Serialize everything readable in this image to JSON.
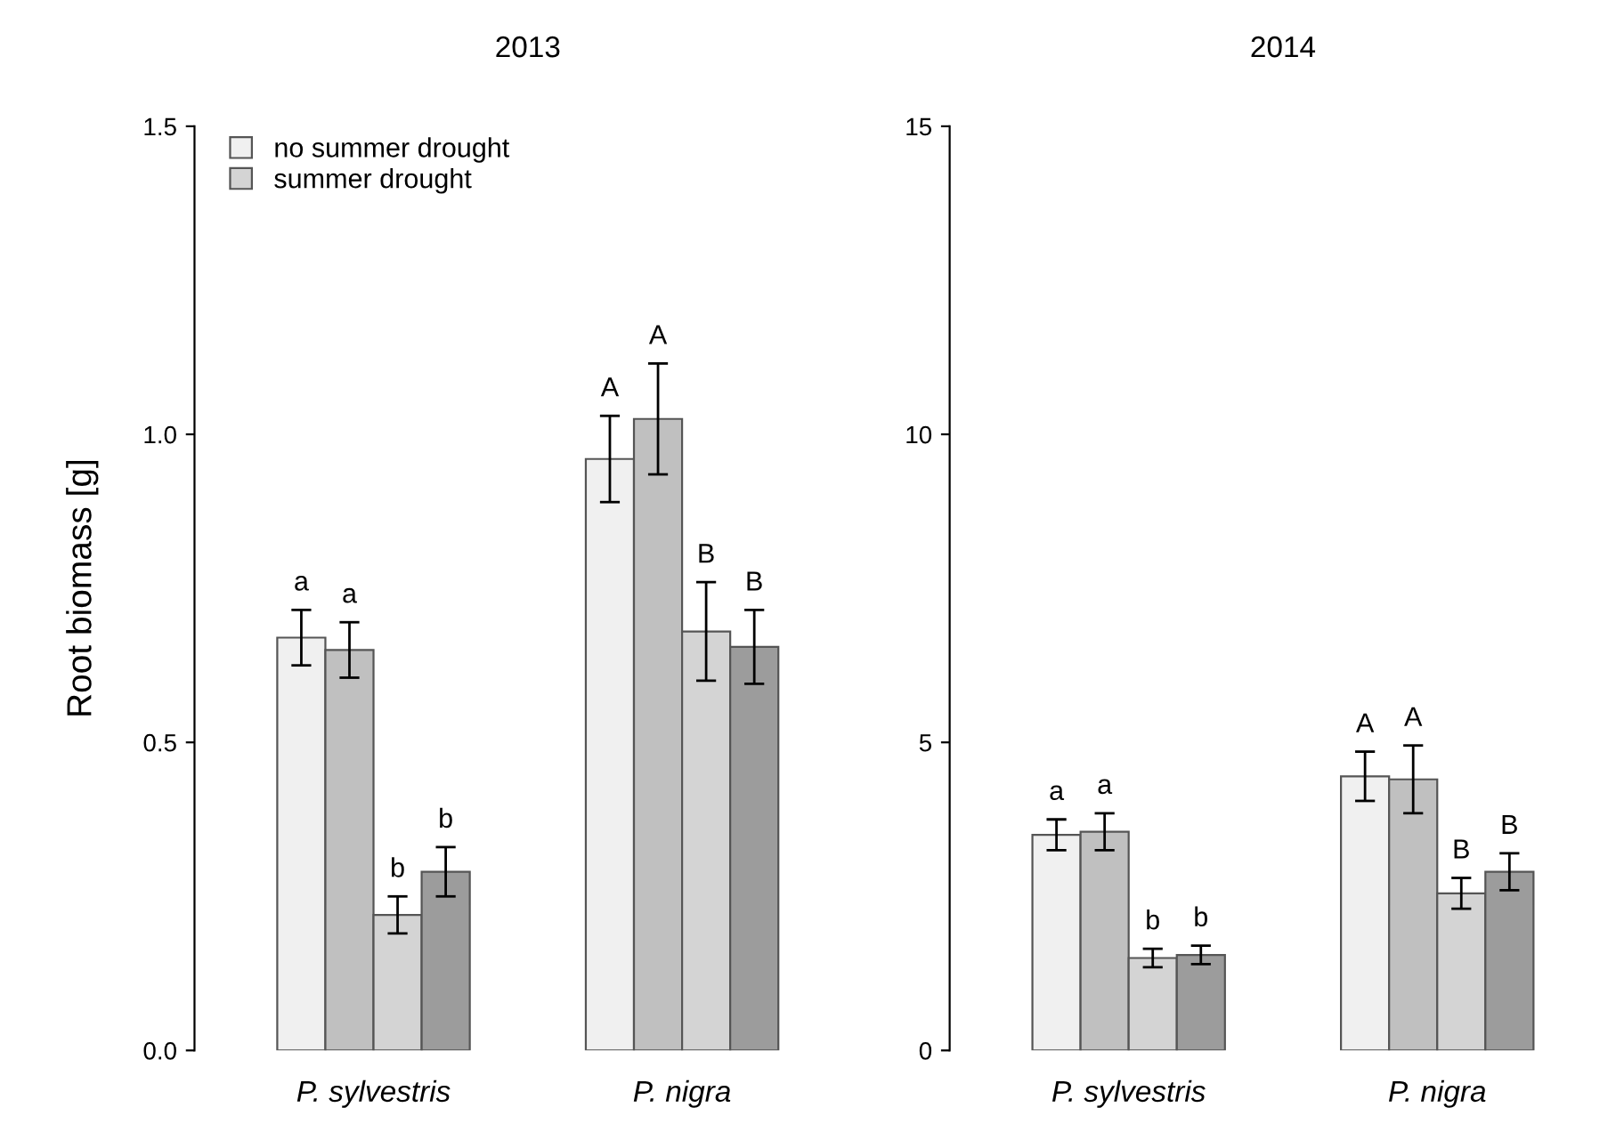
{
  "chart_data": [
    {
      "type": "bar",
      "title": "2013",
      "ylabel": "Root biomass [g]",
      "categories": [
        "P. sylvestris",
        "P. nigra"
      ],
      "ylim": [
        0,
        1.5
      ],
      "yticks": [
        {
          "value": 0,
          "label": "0.0"
        },
        {
          "value": 0.5,
          "label": "0.5"
        },
        {
          "value": 1,
          "label": "1.0"
        },
        {
          "value": 1.5,
          "label": "1.5"
        }
      ],
      "grid": false,
      "legend": "top left",
      "series": [
        {
          "name": "no summer drought",
          "color": "#f0f0f0",
          "values": [
            0.67,
            0.96
          ],
          "errors": [
            0.045,
            0.07
          ],
          "value_labels": [
            "a",
            "A"
          ]
        },
        {
          "color": "#c0c0c0",
          "values": [
            0.65,
            1.025
          ],
          "errors": [
            0.045,
            0.09
          ],
          "value_labels": [
            "a",
            "A"
          ]
        },
        {
          "name": "summer drought",
          "color": "#d4d4d4",
          "values": [
            0.22,
            0.68
          ],
          "errors": [
            0.03,
            0.08
          ],
          "value_labels": [
            "b",
            "B"
          ]
        },
        {
          "color": "#9c9c9c",
          "values": [
            0.29,
            0.655
          ],
          "errors": [
            0.04,
            0.06
          ],
          "value_labels": [
            "b",
            "B"
          ]
        }
      ]
    },
    {
      "type": "bar",
      "title": "2014",
      "categories": [
        "P. sylvestris",
        "P. nigra"
      ],
      "ylim": [
        0,
        15
      ],
      "yticks": [
        0,
        5,
        10,
        15
      ],
      "grid": false,
      "legend": false,
      "series": [
        {
          "color": "#f0f0f0",
          "values": [
            3.5,
            4.45
          ],
          "errors": [
            0.25,
            0.4
          ],
          "value_labels": [
            "a",
            "A"
          ]
        },
        {
          "color": "#c0c0c0",
          "values": [
            3.55,
            4.4
          ],
          "errors": [
            0.3,
            0.55
          ],
          "value_labels": [
            "a",
            "A"
          ]
        },
        {
          "color": "#d4d4d4",
          "values": [
            1.5,
            2.55
          ],
          "errors": [
            0.15,
            0.25
          ],
          "value_labels": [
            "b",
            "B"
          ]
        },
        {
          "color": "#9c9c9c",
          "values": [
            1.55,
            2.9
          ],
          "errors": [
            0.15,
            0.3
          ],
          "value_labels": [
            "b",
            "B"
          ]
        }
      ]
    }
  ]
}
